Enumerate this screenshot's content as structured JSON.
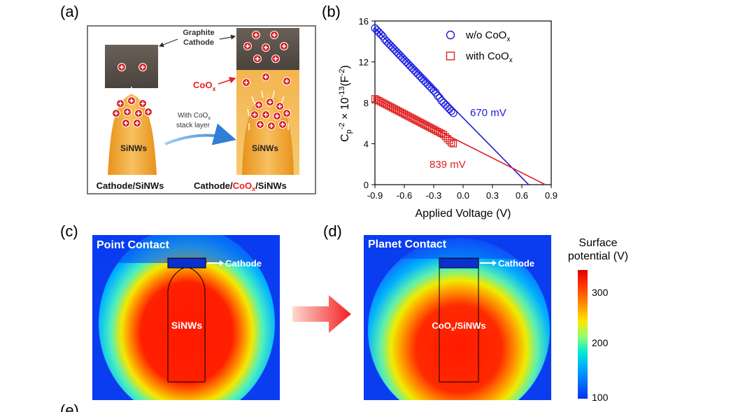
{
  "panel_labels": {
    "a": "(a)",
    "b": "(b)",
    "c": "(c)",
    "d": "(d)",
    "e": "(e)"
  },
  "schematic": {
    "graphite_cathode": "Graphite\nCathode",
    "coox_label": "CoO",
    "coox_sub": "x",
    "stack_label_1": "With CoO",
    "stack_label_1_sub": "x",
    "stack_label_2": "stack layer",
    "sinws_left": "SiNWs",
    "sinws_right": "SiNWs",
    "caption_left": "Cathode/SiNWs",
    "caption_right_1": "Cathode/",
    "caption_right_2": "CoO",
    "caption_right_2_sub": "x",
    "caption_right_3": "/SiNWs",
    "colors": {
      "cathode": "#5a5048",
      "nanowire": "#f0a830",
      "coox": "#e82020",
      "arrow": "#3a7fd0"
    }
  },
  "chart_data": {
    "type": "scatter",
    "xlabel": "Applied Voltage (V)",
    "ylabel": "C_p^-2 × 10^-13(F^-2)",
    "xlim": [
      -0.9,
      0.9
    ],
    "ylim": [
      0,
      16
    ],
    "xticks": [
      "-0.9",
      "-0.6",
      "-0.3",
      "0.0",
      "0.3",
      "0.6",
      "0.9"
    ],
    "yticks": [
      "0",
      "4",
      "8",
      "12",
      "16"
    ],
    "series": [
      {
        "name": "w/o CoO",
        "name_sub": "x",
        "marker": "circle",
        "color": "#1a1ae0",
        "x": [
          -0.9,
          -0.88,
          -0.86,
          -0.84,
          -0.82,
          -0.8,
          -0.78,
          -0.76,
          -0.74,
          -0.72,
          -0.7,
          -0.68,
          -0.66,
          -0.64,
          -0.62,
          -0.6,
          -0.58,
          -0.56,
          -0.54,
          -0.52,
          -0.5,
          -0.48,
          -0.46,
          -0.44,
          -0.42,
          -0.4,
          -0.38,
          -0.36,
          -0.34,
          -0.32,
          -0.3,
          -0.28,
          -0.26,
          -0.24,
          -0.22,
          -0.2,
          -0.18,
          -0.16,
          -0.14,
          -0.12,
          -0.1
        ],
        "y": [
          15.3,
          15.1,
          14.9,
          14.7,
          14.5,
          14.2,
          14.0,
          13.8,
          13.6,
          13.4,
          13.2,
          13.0,
          12.8,
          12.6,
          12.4,
          12.2,
          12.0,
          11.8,
          11.6,
          11.4,
          11.2,
          11.0,
          10.8,
          10.6,
          10.4,
          10.2,
          10.0,
          9.8,
          9.6,
          9.4,
          9.2,
          9.0,
          8.7,
          8.5,
          8.2,
          8.0,
          7.8,
          7.6,
          7.4,
          7.2,
          7.0
        ],
        "fit_line": {
          "x": [
            -0.9,
            0.67
          ],
          "y": [
            15.3,
            0
          ]
        },
        "annotation": "670 mV"
      },
      {
        "name": "with CoO",
        "name_sub": "x",
        "marker": "square",
        "color": "#e02020",
        "x": [
          -0.9,
          -0.88,
          -0.86,
          -0.84,
          -0.82,
          -0.8,
          -0.78,
          -0.76,
          -0.74,
          -0.72,
          -0.7,
          -0.68,
          -0.66,
          -0.64,
          -0.62,
          -0.6,
          -0.58,
          -0.56,
          -0.54,
          -0.52,
          -0.5,
          -0.48,
          -0.46,
          -0.44,
          -0.42,
          -0.4,
          -0.38,
          -0.36,
          -0.34,
          -0.32,
          -0.3,
          -0.28,
          -0.26,
          -0.24,
          -0.22,
          -0.2,
          -0.18,
          -0.16,
          -0.14,
          -0.12,
          -0.1
        ],
        "y": [
          8.4,
          8.3,
          8.2,
          8.1,
          8.0,
          7.9,
          7.8,
          7.7,
          7.6,
          7.5,
          7.4,
          7.3,
          7.2,
          7.1,
          7.0,
          6.9,
          6.8,
          6.7,
          6.6,
          6.5,
          6.4,
          6.3,
          6.2,
          6.1,
          6.0,
          5.9,
          5.8,
          5.7,
          5.6,
          5.5,
          5.4,
          5.3,
          5.2,
          5.1,
          5.0,
          4.9,
          4.7,
          4.5,
          4.3,
          4.1,
          4.0
        ],
        "fit_line": {
          "x": [
            -0.9,
            0.84
          ],
          "y": [
            8.4,
            0
          ]
        },
        "annotation": "839 mV"
      }
    ]
  },
  "sim_c": {
    "title": "Point Contact",
    "cathode": "Cathode",
    "center": "SiNWs"
  },
  "sim_d": {
    "title": "Planet Contact",
    "cathode": "Cathode",
    "center_1": "CoO",
    "center_sub": "x",
    "center_2": "/SiNWs"
  },
  "colorbar": {
    "title_1": "Surface",
    "title_2": "potential (V)",
    "ticks": [
      "300",
      "200",
      "100"
    ]
  }
}
